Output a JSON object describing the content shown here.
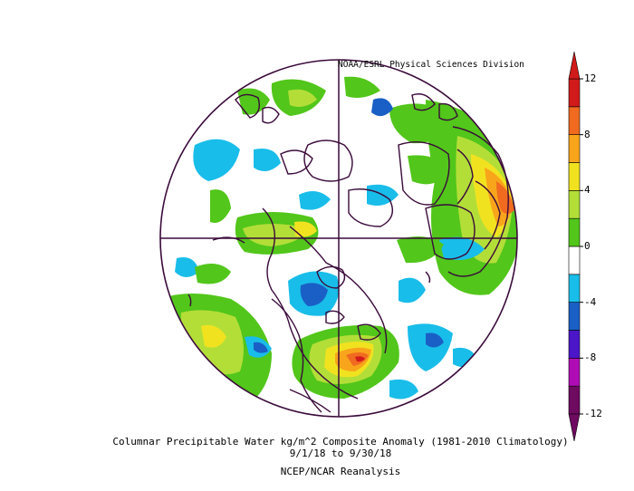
{
  "header": {
    "credit": "NOAA/ESRL Physical Sciences Division"
  },
  "footer": {
    "title": "Columnar Precipitable Water kg/m^2 Composite Anomaly (1981-2010 Climatology)",
    "dates": "9/1/18  to 9/30/18",
    "source": "NCEP/NCAR Reanalysis"
  },
  "map": {
    "projection": "north polar stereographic",
    "region": "Northern Hemisphere"
  },
  "colorbar": {
    "ticks": [
      "12",
      "8",
      "4",
      "0",
      "-4",
      "-8",
      "-12"
    ],
    "colors": [
      "#6e0a60",
      "#b00cb6",
      "#4b16c8",
      "#1a5fc6",
      "#19bde9",
      "#ffffff",
      "#52c61a",
      "#b3de38",
      "#f1e220",
      "#f8a51b",
      "#f06a20",
      "#d11a1a"
    ]
  }
}
